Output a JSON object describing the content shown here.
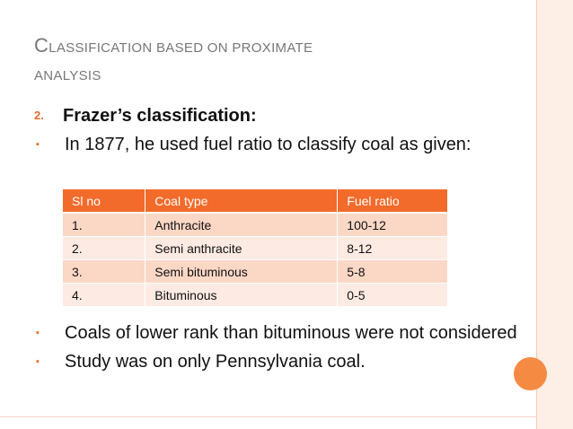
{
  "title": {
    "first_letter": "C",
    "line1_rest": "lassification based on proximate",
    "line2": "analysis"
  },
  "bullets_top": [
    {
      "marker": "2.",
      "text": "Frazer’s classification:"
    },
    {
      "marker": "▪",
      "text": "In 1877, he used fuel ratio to classify coal as given:"
    }
  ],
  "table": {
    "headers": [
      "Sl no",
      "Coal type",
      "Fuel ratio"
    ],
    "rows": [
      [
        "1.",
        "Anthracite",
        "100-12"
      ],
      [
        "2.",
        "Semi anthracite",
        "8-12"
      ],
      [
        "3.",
        "Semi bituminous",
        "5-8"
      ],
      [
        "4.",
        "Bituminous",
        "0-5"
      ]
    ]
  },
  "bullets_bottom": [
    {
      "marker": "▪",
      "text": "Coals of lower rank than bituminous were not considered"
    },
    {
      "marker": "▪",
      "text": "Study was on only Pennsylvania coal."
    }
  ],
  "colors": {
    "accent": "#f26b2a",
    "row_dark": "#fbd7c6",
    "row_light": "#fdebe3",
    "title": "#777777"
  }
}
